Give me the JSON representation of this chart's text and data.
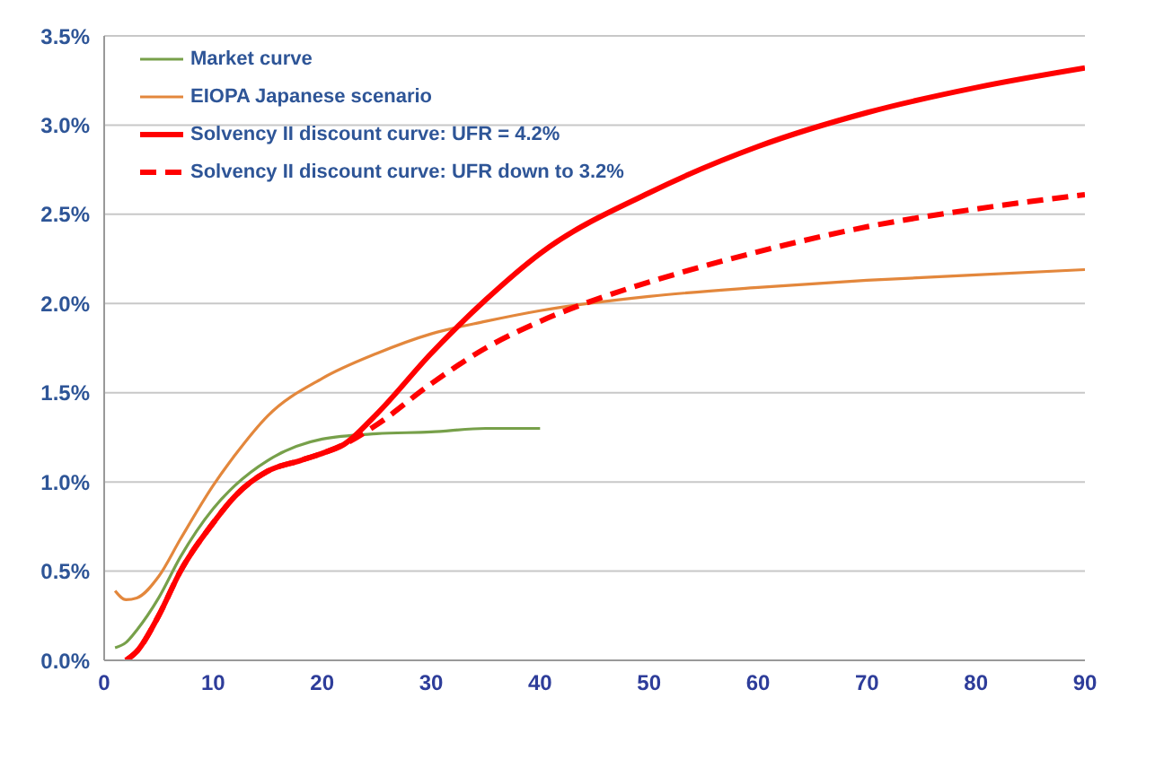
{
  "chart_data": {
    "type": "line",
    "xlim": [
      0,
      90
    ],
    "xticks": [
      0,
      10,
      20,
      30,
      40,
      50,
      60,
      70,
      80,
      90
    ],
    "ylim": [
      0,
      3.5
    ],
    "yticks": [
      {
        "value": 0,
        "label": "0.0%"
      },
      {
        "value": 0.5,
        "label": "0.5%"
      },
      {
        "value": 1,
        "label": "1.0%"
      },
      {
        "value": 1.5,
        "label": "1.5%"
      },
      {
        "value": 2,
        "label": "2.0%"
      },
      {
        "value": 2.5,
        "label": "2.5%"
      },
      {
        "value": 3,
        "label": "3.0%"
      },
      {
        "value": 3.5,
        "label": "3.5%"
      }
    ],
    "grid": "y",
    "legend": "top left",
    "marker": "none",
    "series": [
      {
        "name": "Market curve",
        "color": "#77a04a",
        "line_style": "solid",
        "x": [
          1,
          2,
          3,
          5,
          7,
          10,
          12,
          15,
          20,
          25,
          30,
          35,
          40
        ],
        "values": [
          0.07,
          0.1,
          0.17,
          0.35,
          0.58,
          0.85,
          0.98,
          1.12,
          1.24,
          1.27,
          1.28,
          1.3,
          1.3
        ]
      },
      {
        "name": "EIOPA Japanese scenario",
        "color": "#e3873c",
        "line_style": "solid",
        "x": [
          1,
          2,
          3,
          5,
          7,
          10,
          12,
          15,
          20,
          25,
          30,
          35,
          40,
          50,
          60,
          70,
          80,
          90
        ],
        "values": [
          0.39,
          0.34,
          0.35,
          0.47,
          0.68,
          0.98,
          1.15,
          1.37,
          1.58,
          1.72,
          1.83,
          1.9,
          1.96,
          2.04,
          2.09,
          2.13,
          2.16,
          2.19
        ]
      },
      {
        "name": "Solvency II discount curve: UFR = 4.2%",
        "color": "#ff0000",
        "line_style": "solid",
        "x": [
          2,
          3,
          5,
          7,
          10,
          12,
          15,
          18,
          20,
          22,
          25,
          30,
          35,
          40,
          50,
          60,
          70,
          80,
          90
        ],
        "values": [
          0,
          0.05,
          0.25,
          0.5,
          0.77,
          0.92,
          1.06,
          1.12,
          1.16,
          1.21,
          1.38,
          1.72,
          2.02,
          2.28,
          2.62,
          2.88,
          3.07,
          3.21,
          3.32
        ]
      },
      {
        "name": "Solvency II discount curve: UFR down to 3.2%",
        "color": "#ff0000",
        "line_style": "dashed",
        "x": [
          2,
          3,
          5,
          7,
          10,
          12,
          15,
          18,
          20,
          22,
          25,
          30,
          35,
          40,
          45,
          50,
          60,
          70,
          80,
          90
        ],
        "values": [
          0,
          0.05,
          0.25,
          0.5,
          0.77,
          0.92,
          1.06,
          1.12,
          1.16,
          1.21,
          1.32,
          1.55,
          1.75,
          1.9,
          2.02,
          2.12,
          2.29,
          2.43,
          2.53,
          2.61
        ]
      }
    ]
  }
}
